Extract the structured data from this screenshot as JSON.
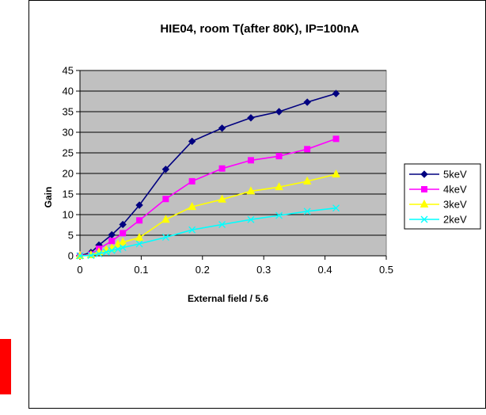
{
  "chart_data": {
    "type": "line",
    "title": "HIE04, room T(after 80K), IP=100nA",
    "xlabel": "External field / 5.6",
    "ylabel": "Gain",
    "xlim": [
      0,
      0.5
    ],
    "ylim": [
      0,
      45
    ],
    "xticks": [
      "0",
      "0.1",
      "0.2",
      "0.3",
      "0.4",
      "0.5"
    ],
    "yticks": [
      "0",
      "5",
      "10",
      "15",
      "20",
      "25",
      "30",
      "35",
      "40",
      "45"
    ],
    "grid": true,
    "legend_position": "right",
    "series": [
      {
        "name": "5keV",
        "color": "#000080",
        "marker": "diamond",
        "points": [
          [
            0,
            0
          ],
          [
            0.018,
            0.8
          ],
          [
            0.031,
            2.6
          ],
          [
            0.052,
            5.1
          ],
          [
            0.07,
            7.6
          ],
          [
            0.097,
            12.3
          ],
          [
            0.14,
            21.0
          ],
          [
            0.183,
            27.8
          ],
          [
            0.232,
            31.0
          ],
          [
            0.279,
            33.5
          ],
          [
            0.325,
            35.0
          ],
          [
            0.371,
            37.3
          ],
          [
            0.418,
            39.4
          ]
        ]
      },
      {
        "name": "4keV",
        "color": "#FF00FF",
        "marker": "square",
        "points": [
          [
            0,
            0
          ],
          [
            0.018,
            0.3
          ],
          [
            0.031,
            1.7
          ],
          [
            0.052,
            3.6
          ],
          [
            0.07,
            5.5
          ],
          [
            0.097,
            8.6
          ],
          [
            0.14,
            13.8
          ],
          [
            0.183,
            18.1
          ],
          [
            0.232,
            21.2
          ],
          [
            0.279,
            23.2
          ],
          [
            0.325,
            24.2
          ],
          [
            0.371,
            25.9
          ],
          [
            0.418,
            28.4
          ]
        ]
      },
      {
        "name": "3keV",
        "color": "#FFFF00",
        "marker": "triangle",
        "points": [
          [
            0,
            0
          ],
          [
            0.018,
            0.2
          ],
          [
            0.031,
            0.9
          ],
          [
            0.043,
            1.4
          ],
          [
            0.052,
            1.8
          ],
          [
            0.062,
            2.8
          ],
          [
            0.07,
            3.3
          ],
          [
            0.097,
            4.4
          ],
          [
            0.14,
            8.8
          ],
          [
            0.183,
            11.9
          ],
          [
            0.232,
            13.7
          ],
          [
            0.279,
            15.7
          ],
          [
            0.325,
            16.7
          ],
          [
            0.371,
            18.1
          ],
          [
            0.418,
            19.8
          ]
        ]
      },
      {
        "name": "2keV",
        "color": "#00FFFF",
        "marker": "x",
        "points": [
          [
            0,
            0
          ],
          [
            0.018,
            0.1
          ],
          [
            0.031,
            0.5
          ],
          [
            0.043,
            0.9
          ],
          [
            0.052,
            1.3
          ],
          [
            0.062,
            1.6
          ],
          [
            0.07,
            2.0
          ],
          [
            0.097,
            2.9
          ],
          [
            0.14,
            4.5
          ],
          [
            0.183,
            6.3
          ],
          [
            0.232,
            7.6
          ],
          [
            0.279,
            8.8
          ],
          [
            0.325,
            9.8
          ],
          [
            0.371,
            10.8
          ],
          [
            0.418,
            11.6
          ]
        ]
      }
    ]
  }
}
